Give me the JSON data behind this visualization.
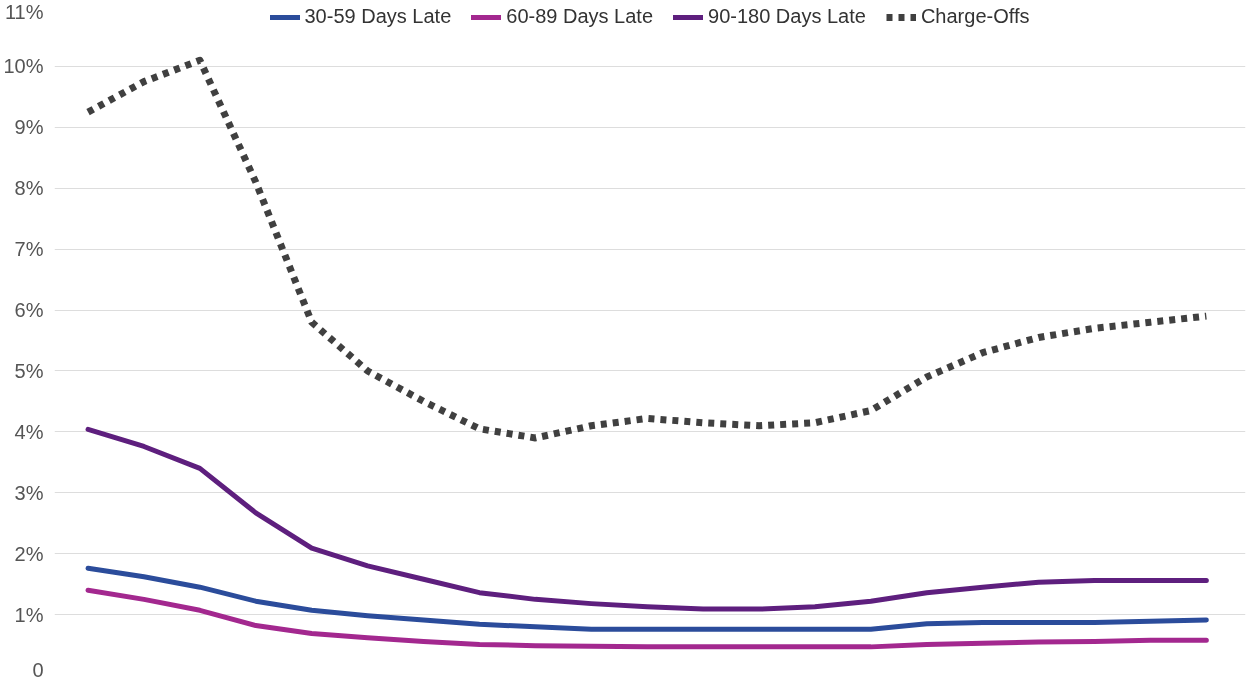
{
  "chart_data": {
    "type": "line",
    "categories": [
      null,
      null,
      null,
      null,
      null,
      null,
      null,
      null,
      null,
      null,
      null,
      null,
      null,
      null,
      null,
      null,
      null,
      null,
      null,
      null,
      null
    ],
    "series": [
      {
        "name": "30-59 Days Late",
        "color": "#2b4c9b",
        "values": [
          1.76,
          1.62,
          1.45,
          1.22,
          1.07,
          0.98,
          0.91,
          0.84,
          0.8,
          0.76,
          0.76,
          0.76,
          0.76,
          0.76,
          0.76,
          0.85,
          0.87,
          0.87,
          0.87,
          0.89,
          0.91
        ]
      },
      {
        "name": "60-89 Days Late",
        "color": "#a3288f",
        "values": [
          1.4,
          1.25,
          1.07,
          0.82,
          0.69,
          0.62,
          0.56,
          0.51,
          0.49,
          0.48,
          0.47,
          0.47,
          0.47,
          0.47,
          0.47,
          0.51,
          0.53,
          0.55,
          0.56,
          0.58,
          0.58
        ]
      },
      {
        "name": "90-180 Days Late",
        "color": "#5e1f7e",
        "values": [
          4.04,
          3.76,
          3.4,
          2.67,
          2.09,
          1.8,
          1.58,
          1.36,
          1.25,
          1.18,
          1.13,
          1.09,
          1.09,
          1.13,
          1.22,
          1.36,
          1.45,
          1.53,
          1.56,
          1.56,
          1.56
        ]
      },
      {
        "name": "Charge-Offs",
        "color": "#404040",
        "line_style": "dotted",
        "values": [
          9.25,
          9.75,
          10.1,
          8.1,
          5.8,
          5.0,
          4.5,
          4.05,
          3.9,
          4.1,
          4.22,
          4.15,
          4.1,
          4.15,
          4.35,
          4.9,
          5.3,
          5.55,
          5.7,
          5.8,
          5.9
        ]
      }
    ],
    "ylim": [
      0,
      11
    ],
    "yticks": [
      {
        "value": 0,
        "label": "0"
      },
      {
        "value": 1,
        "label": "1%"
      },
      {
        "value": 2,
        "label": "2%"
      },
      {
        "value": 3,
        "label": "3%"
      },
      {
        "value": 4,
        "label": "4%"
      },
      {
        "value": 5,
        "label": "5%"
      },
      {
        "value": 6,
        "label": "6%"
      },
      {
        "value": 7,
        "label": "7%"
      },
      {
        "value": 8,
        "label": "8%"
      },
      {
        "value": 9,
        "label": "9%"
      },
      {
        "value": 10,
        "label": "10%"
      },
      {
        "value": 11,
        "label": "11%"
      }
    ],
    "grid": "y",
    "legend": "top",
    "tick_labels": "y",
    "marker": "none",
    "line_style": "solid"
  }
}
